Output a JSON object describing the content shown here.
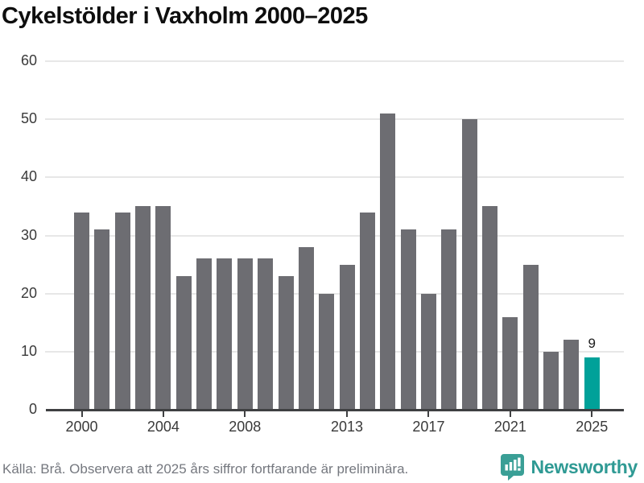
{
  "title": "Cykelstölder i Vaxholm 2000–2025",
  "source_note": "Källa: Brå. Observera att 2025 års siffror fortfarande är preliminära.",
  "branding": {
    "name": "Newsworthy",
    "logo_icon": "bar-chart-speech-bubble-icon"
  },
  "colors": {
    "bar": "#6d6d72",
    "highlight_bar": "#00a199",
    "gridline": "#e7e7e7",
    "axis_line": "#3f4042",
    "title_text": "#0e0e0e",
    "tick_text": "#3a3a3a",
    "source_text": "#75787f",
    "brand_teal": "#2f9a94",
    "logo_background": "#3a9f96"
  },
  "chart_data": {
    "type": "bar",
    "title": "Cykelstölder i Vaxholm 2000–2025",
    "categories": [
      "2000",
      "2001",
      "2002",
      "2003",
      "2004",
      "2005",
      "2006",
      "2007",
      "2008",
      "2009",
      "2010",
      "2011",
      "2012",
      "2013",
      "2014",
      "2015",
      "2016",
      "2017",
      "2018",
      "2019",
      "2020",
      "2021",
      "2022",
      "2023",
      "2024",
      "2025"
    ],
    "values": [
      34,
      31,
      34,
      35,
      35,
      23,
      26,
      26,
      26,
      26,
      23,
      28,
      20,
      25,
      34,
      51,
      31,
      20,
      31,
      50,
      35,
      16,
      25,
      10,
      12,
      9
    ],
    "highlight_category": "2025",
    "highlight_value_label": "9",
    "xlabel": "",
    "ylabel": "",
    "ylim": [
      0,
      60
    ],
    "yticks": [
      0,
      10,
      20,
      30,
      40,
      50,
      60
    ],
    "xticks": [
      "2000",
      "2004",
      "2008",
      "2013",
      "2017",
      "2021",
      "2025"
    ],
    "grid": true,
    "legend": false
  }
}
